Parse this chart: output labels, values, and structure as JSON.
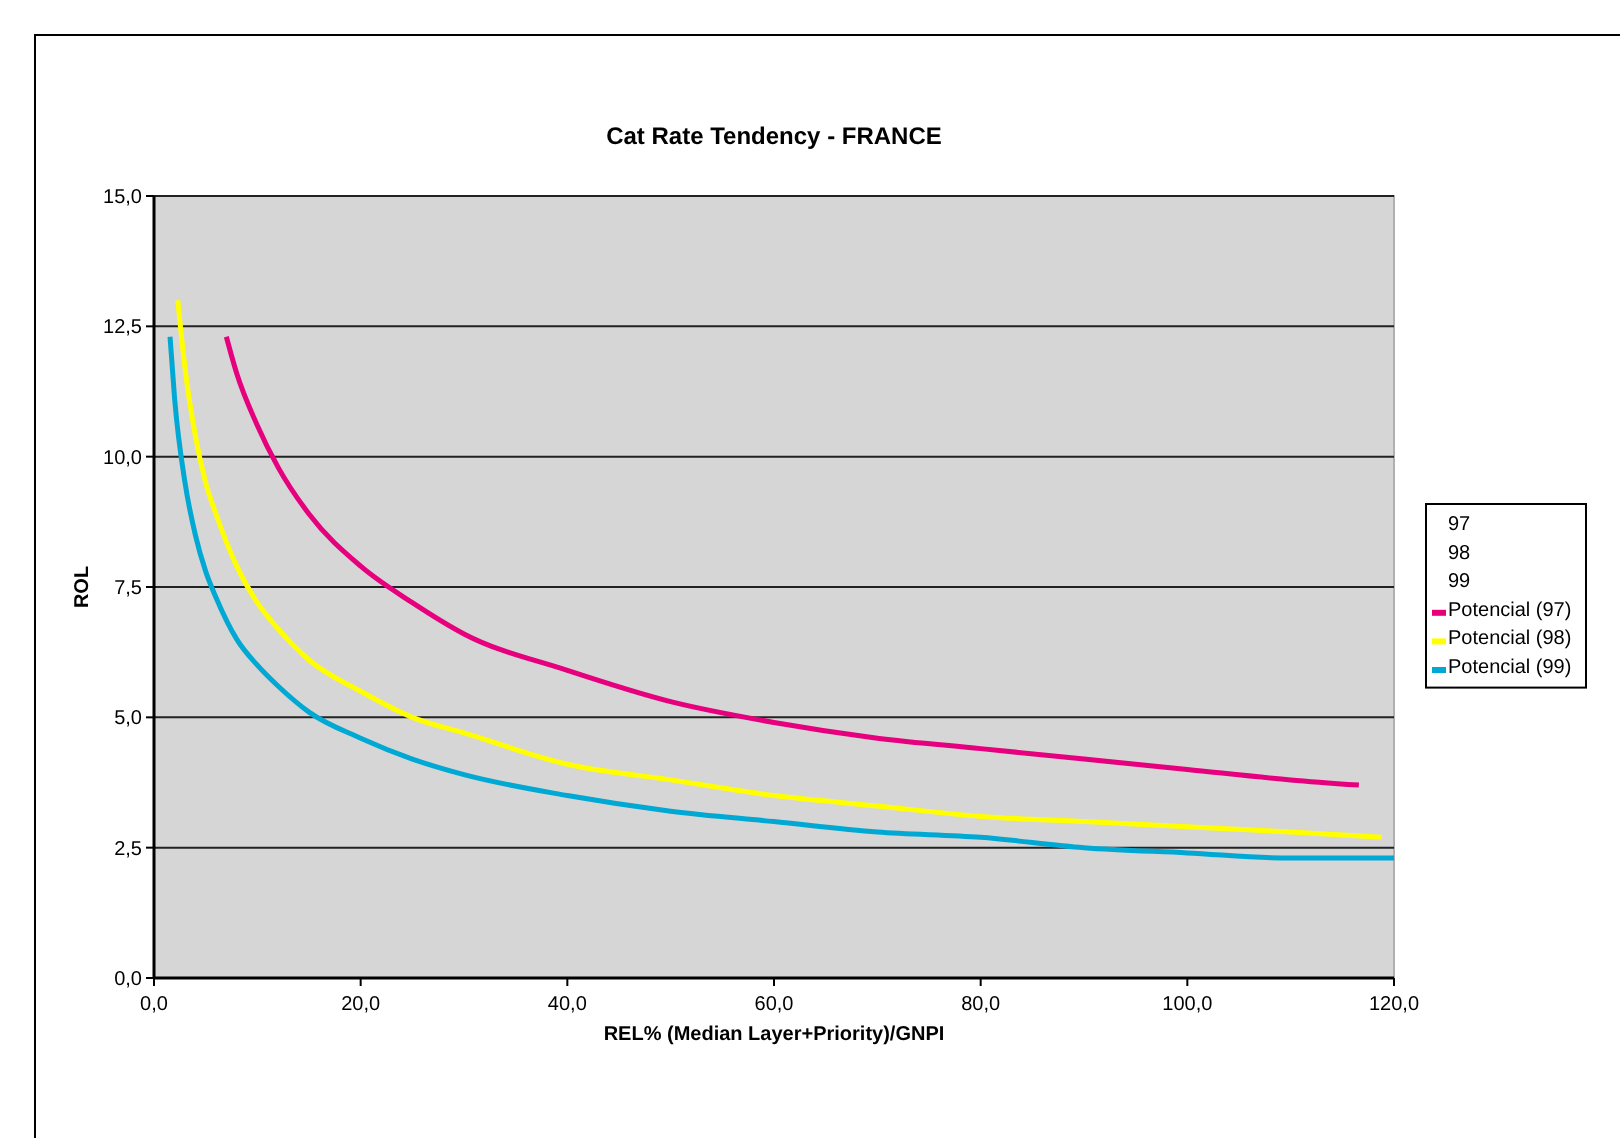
{
  "chart_data": {
    "type": "line",
    "title": "Cat Rate Tendency - FRANCE",
    "xlabel": "REL% (Median Layer+Priority)/GNPI",
    "ylabel": "ROL",
    "xlim": [
      0,
      120
    ],
    "xticks": [
      {
        "value": 0,
        "label": "0,0"
      },
      {
        "value": 20,
        "label": "20,0"
      },
      {
        "value": 40,
        "label": "40,0"
      },
      {
        "value": 60,
        "label": "60,0"
      },
      {
        "value": 80,
        "label": "80,0"
      },
      {
        "value": 100,
        "label": "100,0"
      },
      {
        "value": 120,
        "label": "120,0"
      }
    ],
    "ylim": [
      0,
      15
    ],
    "yticks": [
      {
        "value": 0,
        "label": "0,0"
      },
      {
        "value": 2.5,
        "label": "2,5"
      },
      {
        "value": 5,
        "label": "5,0"
      },
      {
        "value": 7.5,
        "label": "7,5"
      },
      {
        "value": 10,
        "label": "10,0"
      },
      {
        "value": 12.5,
        "label": "12,5"
      },
      {
        "value": 15,
        "label": "15,0"
      }
    ],
    "grid": "y",
    "legend": "right",
    "marker": "none",
    "line_style": "solid",
    "series": [
      {
        "name": "97"
      },
      {
        "name": "98"
      },
      {
        "name": "99"
      },
      {
        "name": "Potencial (97)",
        "color": "#e6007e",
        "x": [
          7,
          8,
          10,
          12,
          15,
          20,
          25,
          30,
          40,
          50,
          60,
          70,
          80,
          90,
          100,
          110,
          116.6
        ],
        "values": [
          12.3,
          11.6,
          10.6,
          9.8,
          8.9,
          7.9,
          7.2,
          6.6,
          5.9,
          5.3,
          4.9,
          4.6,
          4.4,
          4.2,
          4.0,
          3.8,
          3.7
        ]
      },
      {
        "name": "Potencial (98)",
        "color": "#ffff00",
        "x": [
          2.3,
          3,
          4,
          5,
          6,
          8,
          10,
          12,
          15,
          20,
          25,
          30,
          40,
          50,
          60,
          70,
          80,
          90,
          100,
          110,
          118.8
        ],
        "values": [
          13.0,
          11.7,
          10.4,
          9.5,
          8.9,
          7.9,
          7.2,
          6.7,
          6.1,
          5.5,
          5.0,
          4.7,
          4.1,
          3.8,
          3.5,
          3.3,
          3.1,
          3.0,
          2.9,
          2.8,
          2.7
        ]
      },
      {
        "name": "Potencial (99)",
        "color": "#00a8d4",
        "x": [
          1.55,
          2,
          3,
          4,
          5,
          6,
          8,
          10,
          12,
          15,
          20,
          25,
          30,
          40,
          50,
          60,
          70,
          80,
          90,
          100,
          110,
          120
        ],
        "values": [
          12.3,
          11.1,
          9.5,
          8.5,
          7.8,
          7.3,
          6.5,
          6.0,
          5.6,
          5.1,
          4.6,
          4.2,
          3.9,
          3.5,
          3.2,
          3.0,
          2.8,
          2.7,
          2.5,
          2.4,
          2.3,
          2.3
        ]
      }
    ]
  }
}
